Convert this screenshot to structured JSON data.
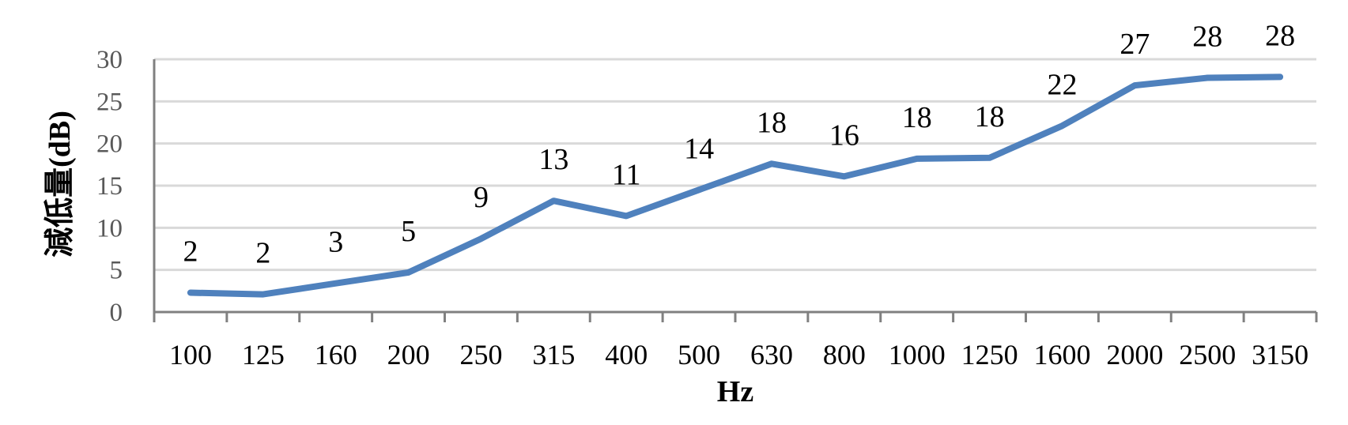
{
  "chart_data": {
    "type": "line",
    "xlabel": "Hz",
    "ylabel": "減低量(dB)",
    "categories": [
      "100",
      "125",
      "160",
      "200",
      "250",
      "315",
      "400",
      "500",
      "630",
      "800",
      "1000",
      "1250",
      "1600",
      "2000",
      "2500",
      "3150"
    ],
    "series": [
      {
        "values": [
          2.3,
          2.1,
          3.4,
          4.7,
          8.7,
          13.2,
          11.4,
          14.5,
          17.6,
          16.1,
          18.2,
          18.3,
          22.1,
          26.9,
          27.8,
          27.9
        ]
      }
    ],
    "data_labels": [
      "2",
      "2",
      "3",
      "5",
      "9",
      "13",
      "11",
      "14",
      "18",
      "16",
      "18",
      "18",
      "22",
      "27",
      "28",
      "28"
    ],
    "yticks": [
      "0",
      "5",
      "10",
      "15",
      "20",
      "25",
      "30"
    ],
    "ylim": [
      0,
      30
    ],
    "grid": true,
    "legend": "none",
    "line_color": "#4f81bd"
  }
}
